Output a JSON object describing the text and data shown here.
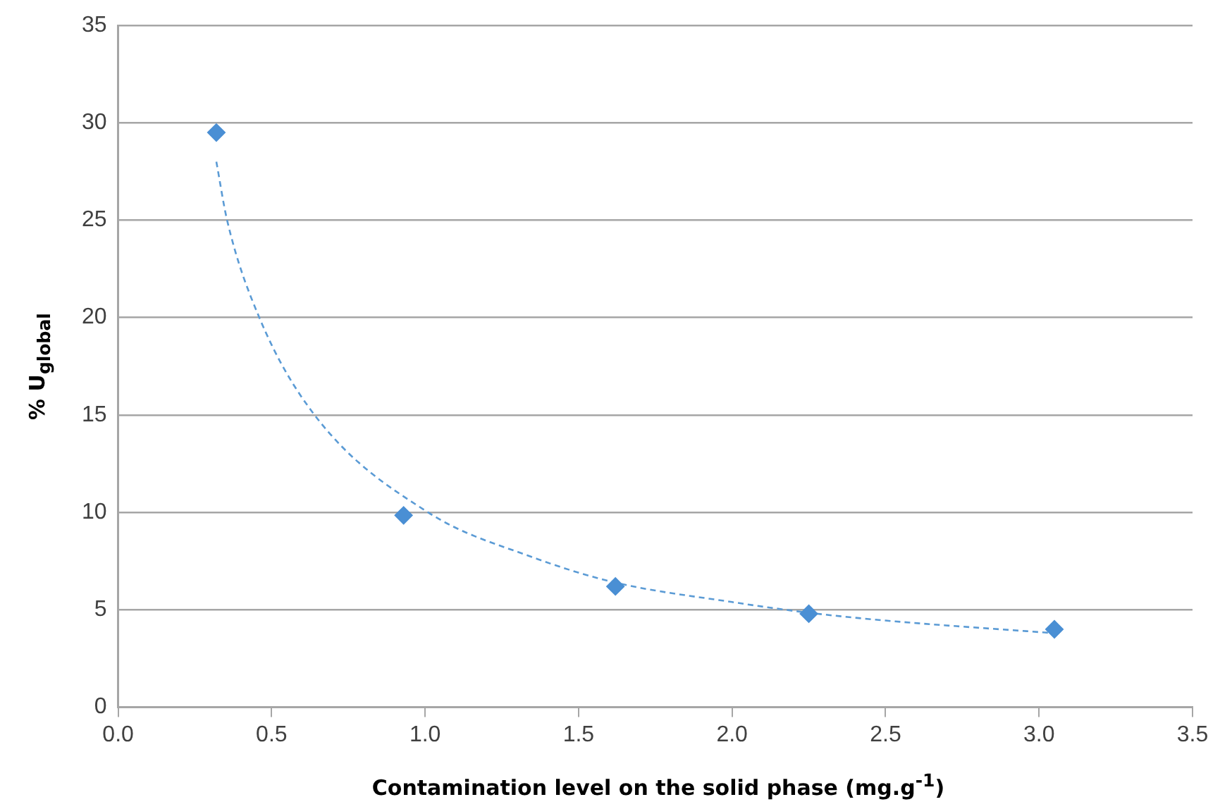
{
  "chart_data": {
    "type": "scatter",
    "xlabel": "Contamination level on the solid phase (mg.g$^{-1}$)",
    "ylabel": "% U$_{global}$",
    "series": [
      {
        "color": "#4a8fd4",
        "marker": "diamond",
        "x": [
          0.32,
          0.93,
          1.62,
          2.25,
          3.05
        ],
        "values": [
          29.5,
          9.85,
          6.2,
          4.8,
          4.0
        ]
      },
      {
        "type": "line",
        "color": "#5b9bd5",
        "marker": "none",
        "line_style": "dashed",
        "x": [
          0.32,
          0.355,
          0.46,
          0.64,
          1.01,
          1.35,
          1.62,
          2.0,
          2.25,
          2.5,
          3.05
        ],
        "values": [
          28,
          25,
          20,
          15,
          10,
          7.7,
          6.4,
          5.4,
          4.85,
          4.45,
          3.8
        ]
      }
    ],
    "xlim": [
      0,
      3.5
    ],
    "xticks": [
      {
        "value": 0,
        "label": "0.0"
      },
      {
        "value": 0.5,
        "label": "0.5"
      },
      {
        "value": 1,
        "label": "1.0"
      },
      {
        "value": 1.5,
        "label": "1.5"
      },
      {
        "value": 2,
        "label": "2.0"
      },
      {
        "value": 2.5,
        "label": "2.5"
      },
      {
        "value": 3,
        "label": "3.0"
      },
      {
        "value": 3.5,
        "label": "3.5"
      }
    ],
    "ylim": [
      0,
      35
    ],
    "yticks": [
      0,
      5,
      10,
      15,
      20,
      25,
      30,
      35
    ],
    "grid": "y",
    "legend": false
  }
}
